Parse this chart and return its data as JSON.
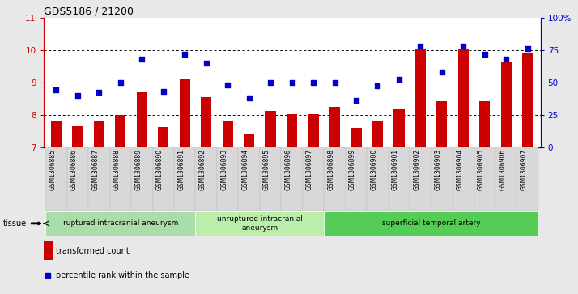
{
  "title": "GDS5186 / 21200",
  "samples": [
    "GSM1306885",
    "GSM1306886",
    "GSM1306887",
    "GSM1306888",
    "GSM1306889",
    "GSM1306890",
    "GSM1306891",
    "GSM1306892",
    "GSM1306893",
    "GSM1306894",
    "GSM1306895",
    "GSM1306896",
    "GSM1306897",
    "GSM1306898",
    "GSM1306899",
    "GSM1306900",
    "GSM1306901",
    "GSM1306902",
    "GSM1306903",
    "GSM1306904",
    "GSM1306905",
    "GSM1306906",
    "GSM1306907"
  ],
  "bar_values": [
    7.82,
    7.65,
    7.78,
    8.0,
    8.72,
    7.62,
    9.08,
    8.55,
    7.8,
    7.42,
    8.12,
    8.02,
    8.02,
    8.25,
    7.58,
    7.78,
    8.18,
    10.05,
    8.42,
    10.05,
    8.42,
    9.65,
    9.92
  ],
  "scatter_values": [
    44,
    40,
    42,
    50,
    68,
    43,
    72,
    65,
    48,
    38,
    50,
    50,
    50,
    50,
    36,
    47,
    52,
    78,
    58,
    78,
    72,
    68,
    76
  ],
  "bar_color": "#cc0000",
  "scatter_color": "#0000cc",
  "ylim_left": [
    7,
    11
  ],
  "ylim_right": [
    0,
    100
  ],
  "yticks_left": [
    7,
    8,
    9,
    10,
    11
  ],
  "yticks_right": [
    0,
    25,
    50,
    75,
    100
  ],
  "yticklabels_right": [
    "0",
    "25",
    "50",
    "75",
    "100%"
  ],
  "groups": [
    {
      "label": "ruptured intracranial aneurysm",
      "start": 0,
      "end": 7,
      "color": "#aaddaa"
    },
    {
      "label": "unruptured intracranial\naneurysm",
      "start": 7,
      "end": 13,
      "color": "#bbeeaa"
    },
    {
      "label": "superficial temporal artery",
      "start": 13,
      "end": 23,
      "color": "#55cc55"
    }
  ],
  "tissue_label": "tissue",
  "legend_bar_label": "transformed count",
  "legend_scatter_label": "percentile rank within the sample",
  "bg_color": "#e8e8e8",
  "plot_bg_color": "#ffffff"
}
